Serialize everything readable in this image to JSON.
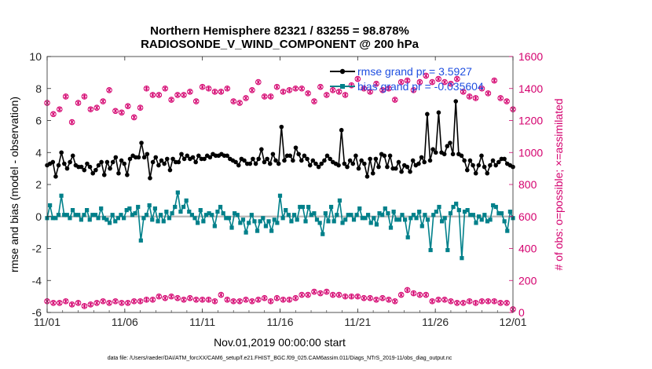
{
  "chart_data": {
    "type": "line",
    "title": "Northern Hemisphere 82321 / 83255 = 98.878%",
    "subtitle": "RADIOSONDE_V_WIND_COMPONENT @ 200 hPa",
    "xlabel": "Nov.01,2019 00:00:00 start",
    "ylabel": "rmse and bias (model - observation)",
    "ylabel_right": "# of obs: o=possible; ×=assimilated",
    "x_ticklabels": [
      "11/01",
      "11/06",
      "11/11",
      "11/16",
      "11/21",
      "11/26",
      "12/01"
    ],
    "xlim": [
      0,
      30
    ],
    "ylim": [
      -6,
      10
    ],
    "y_ticks": [
      -6,
      -4,
      -2,
      0,
      2,
      4,
      6,
      8,
      10
    ],
    "ylim_right": [
      0,
      1600
    ],
    "y_ticks_right": [
      0,
      200,
      400,
      600,
      800,
      1000,
      1200,
      1400,
      1600
    ],
    "legend": [
      "rmse grand pr = 3.5927",
      "bias grand pr = -0.035604"
    ],
    "footnote": "data file: /Users/raeder/DAI/ATM_forcXX/CAM6_setup/f.e21.FHIST_BGC.f09_025.CAM6assim.011/Diags_NTrS_2019-11/obs_diag_output.nc",
    "colors": {
      "rmse": "#000000",
      "bias": "#00808a",
      "obs": "#d4006e",
      "axis": "#262626"
    },
    "series": [
      {
        "name": "rmse",
        "values": [
          3.2,
          3.3,
          3.4,
          2.5,
          3.2,
          4.0,
          3.3,
          3.0,
          3.4,
          3.8,
          3.2,
          3.1,
          3.1,
          2.9,
          3.3,
          3.1,
          2.7,
          2.9,
          3.2,
          3.4,
          2.6,
          3.4,
          3.0,
          3.4,
          3.7,
          2.7,
          3.5,
          3.3,
          2.6,
          3.6,
          3.8,
          3.7,
          3.7,
          4.6,
          3.7,
          3.9,
          2.4,
          3.4,
          3.7,
          3.2,
          3.5,
          3.3,
          3.6,
          2.9,
          3.6,
          3.4,
          3.4,
          3.9,
          3.6,
          3.8,
          3.6,
          3.7,
          3.4,
          3.8,
          3.6,
          3.6,
          3.8,
          3.7,
          3.9,
          3.8,
          3.8,
          3.9,
          3.8,
          3.8,
          3.6,
          3.5,
          3.4,
          3.2,
          3.6,
          3.5,
          3.3,
          3.3,
          3.6,
          3.3,
          3.6,
          4.2,
          3.4,
          3.6,
          3.3,
          3.9,
          3.5,
          3.3,
          5.6,
          3.5,
          3.8,
          3.8,
          3.5,
          4.3,
          3.9,
          3.5,
          3.8,
          3.6,
          3.2,
          3.5,
          3.3,
          3.1,
          3.3,
          3.5,
          3.8,
          3.6,
          3.4,
          3.3,
          3.2,
          5.4,
          3.3,
          3.1,
          3.5,
          3.3,
          3.8,
          3.0,
          3.5,
          3.3,
          2.5,
          3.6,
          2.7,
          3.6,
          3.1,
          3.9,
          3.8,
          3.1,
          3.8,
          3.0,
          3.0,
          3.4,
          2.8,
          3.2,
          3.1,
          2.8,
          3.5,
          3.2,
          3.3,
          3.7,
          3.4,
          6.4,
          3.5,
          4.2,
          4.0,
          6.5,
          4.0,
          3.9,
          4.4,
          4.6,
          3.9,
          7.2,
          3.9,
          3.8,
          3.5,
          2.9,
          3.5,
          3.2,
          2.7,
          3.2,
          3.8,
          3.1,
          2.7,
          3.2,
          3.5,
          3.2,
          3.4,
          3.6,
          3.6,
          3.3,
          3.2,
          3.1
        ]
      },
      {
        "name": "bias",
        "values": [
          -0.1,
          0.7,
          -0.1,
          -0.1,
          0.1,
          1.3,
          0.1,
          0.1,
          -0.1,
          0.4,
          0.1,
          0.1,
          -0.2,
          0.1,
          0.4,
          -0.2,
          0.1,
          0.1,
          -0.1,
          0.5,
          -0.1,
          -0.2,
          -0.4,
          0.1,
          -0.3,
          -0.1,
          0.1,
          -0.1,
          0.4,
          0.5,
          0.1,
          0.2,
          0.6,
          -1.5,
          -0.1,
          0.1,
          0.7,
          -0.2,
          0.5,
          -0.3,
          0.1,
          -0.3,
          0.3,
          -0.1,
          0.2,
          0.6,
          1.5,
          0.3,
          0.6,
          1.0,
          0.3,
          0.1,
          -0.1,
          -0.4,
          0.4,
          -0.3,
          0.1,
          0.2,
          0.1,
          -0.6,
          0.3,
          0.6,
          0.2,
          -0.1,
          -0.1,
          -0.7,
          0.2,
          0.1,
          -0.4,
          -0.2,
          -1.0,
          -0.4,
          0.1,
          -0.3,
          -0.9,
          -0.3,
          -0.1,
          -0.6,
          -0.3,
          -0.9,
          -0.2,
          -0.4,
          1.3,
          -0.1,
          0.4,
          0.1,
          -0.3,
          0.1,
          -0.2,
          0.6,
          0.6,
          -0.3,
          0.6,
          0.1,
          0.2,
          -0.2,
          -0.4,
          -1.1,
          0.2,
          -0.3,
          0.6,
          -0.3,
          0.1,
          1.0,
          -0.4,
          -0.2,
          0.1,
          0.1,
          -0.2,
          0.1,
          0.5,
          -0.1,
          -0.1,
          0.1,
          -0.4,
          -0.1,
          -0.5,
          0.2,
          0.1,
          0.5,
          0.2,
          -0.7,
          0.3,
          -0.2,
          -0.2,
          0.1,
          -0.2,
          -1.3,
          -0.1,
          0.1,
          -0.1,
          0.3,
          -0.6,
          0.1,
          -0.2,
          -2.1,
          0.1,
          0.3,
          0.6,
          -0.3,
          -0.1,
          -2.1,
          0.2,
          0.6,
          0.8,
          0.4,
          -2.6,
          0.3,
          0.4,
          0.1,
          0.1,
          -0.4,
          0.0,
          -0.2,
          0.1,
          -0.3,
          -0.2,
          0.7,
          0.6,
          0.2,
          0.2,
          -0.3,
          -0.9,
          0.3,
          -0.1
        ]
      },
      {
        "name": "possible_obs_upper",
        "axis": "right",
        "x": [
          0.0,
          0.4,
          0.8,
          1.2,
          1.6,
          2.0,
          2.4,
          2.8,
          3.2,
          3.6,
          4.0,
          4.4,
          4.8,
          5.2,
          5.6,
          6.0,
          6.4,
          6.8,
          7.2,
          7.6,
          8.0,
          8.4,
          8.8,
          9.2,
          9.6,
          10.0,
          10.4,
          10.8,
          11.2,
          11.6,
          12.0,
          12.4,
          12.8,
          13.2,
          13.6,
          14.0,
          14.4,
          14.8,
          15.2,
          15.6,
          16.0,
          16.4,
          16.8,
          17.2,
          17.6,
          18.0,
          18.4,
          18.8,
          19.2,
          19.6,
          20.0,
          20.4,
          20.8,
          21.2,
          21.6,
          22.0,
          22.4,
          22.8,
          23.2,
          23.6,
          24.0,
          24.4,
          24.8,
          25.2,
          25.6,
          26.0,
          26.4,
          26.8,
          27.2,
          27.6,
          28.0,
          28.4,
          28.8,
          29.2,
          29.6,
          30.0
        ],
        "values": [
          1310,
          1240,
          1270,
          1350,
          1190,
          1310,
          1350,
          1270,
          1280,
          1320,
          1390,
          1260,
          1250,
          1290,
          1220,
          1280,
          1400,
          1360,
          1360,
          1400,
          1330,
          1360,
          1360,
          1380,
          1320,
          1410,
          1400,
          1380,
          1380,
          1400,
          1320,
          1310,
          1340,
          1390,
          1440,
          1350,
          1350,
          1410,
          1380,
          1390,
          1400,
          1400,
          1370,
          1320,
          1410,
          1360,
          1390,
          1380,
          1360,
          1420,
          1460,
          1400,
          1380,
          1430,
          1390,
          1400,
          1330,
          1440,
          1450,
          1390,
          1440,
          1480,
          1440,
          1460,
          1440,
          1430,
          1460,
          1380,
          1350,
          1340,
          1400,
          1370,
          1450,
          1340,
          1320,
          1270
        ]
      },
      {
        "name": "possible_obs_lower",
        "axis": "right",
        "x": [
          0.0,
          0.4,
          0.8,
          1.2,
          1.6,
          2.0,
          2.4,
          2.8,
          3.2,
          3.6,
          4.0,
          4.4,
          4.8,
          5.2,
          5.6,
          6.0,
          6.4,
          6.8,
          7.2,
          7.6,
          8.0,
          8.4,
          8.8,
          9.2,
          9.6,
          10.0,
          10.4,
          10.8,
          11.2,
          11.6,
          12.0,
          12.4,
          12.8,
          13.2,
          13.6,
          14.0,
          14.4,
          14.8,
          15.2,
          15.6,
          16.0,
          16.4,
          16.8,
          17.2,
          17.6,
          18.0,
          18.4,
          18.8,
          19.2,
          19.6,
          20.0,
          20.4,
          20.8,
          21.2,
          21.6,
          22.0,
          22.4,
          22.8,
          23.2,
          23.6,
          24.0,
          24.4,
          24.8,
          25.2,
          25.6,
          26.0,
          26.4,
          26.8,
          27.2,
          27.6,
          28.0,
          28.4,
          28.8,
          29.2,
          29.6,
          30.0
        ],
        "values": [
          70,
          60,
          60,
          70,
          50,
          60,
          40,
          50,
          60,
          70,
          60,
          70,
          60,
          60,
          70,
          70,
          80,
          80,
          100,
          90,
          100,
          90,
          80,
          90,
          80,
          80,
          80,
          70,
          110,
          80,
          70,
          70,
          80,
          70,
          80,
          90,
          70,
          90,
          80,
          80,
          90,
          110,
          110,
          130,
          120,
          130,
          110,
          110,
          100,
          100,
          100,
          90,
          90,
          80,
          90,
          80,
          70,
          110,
          140,
          120,
          110,
          110,
          70,
          80,
          80,
          70,
          60,
          60,
          70,
          60,
          70,
          70,
          70,
          60,
          60,
          20
        ]
      }
    ]
  }
}
